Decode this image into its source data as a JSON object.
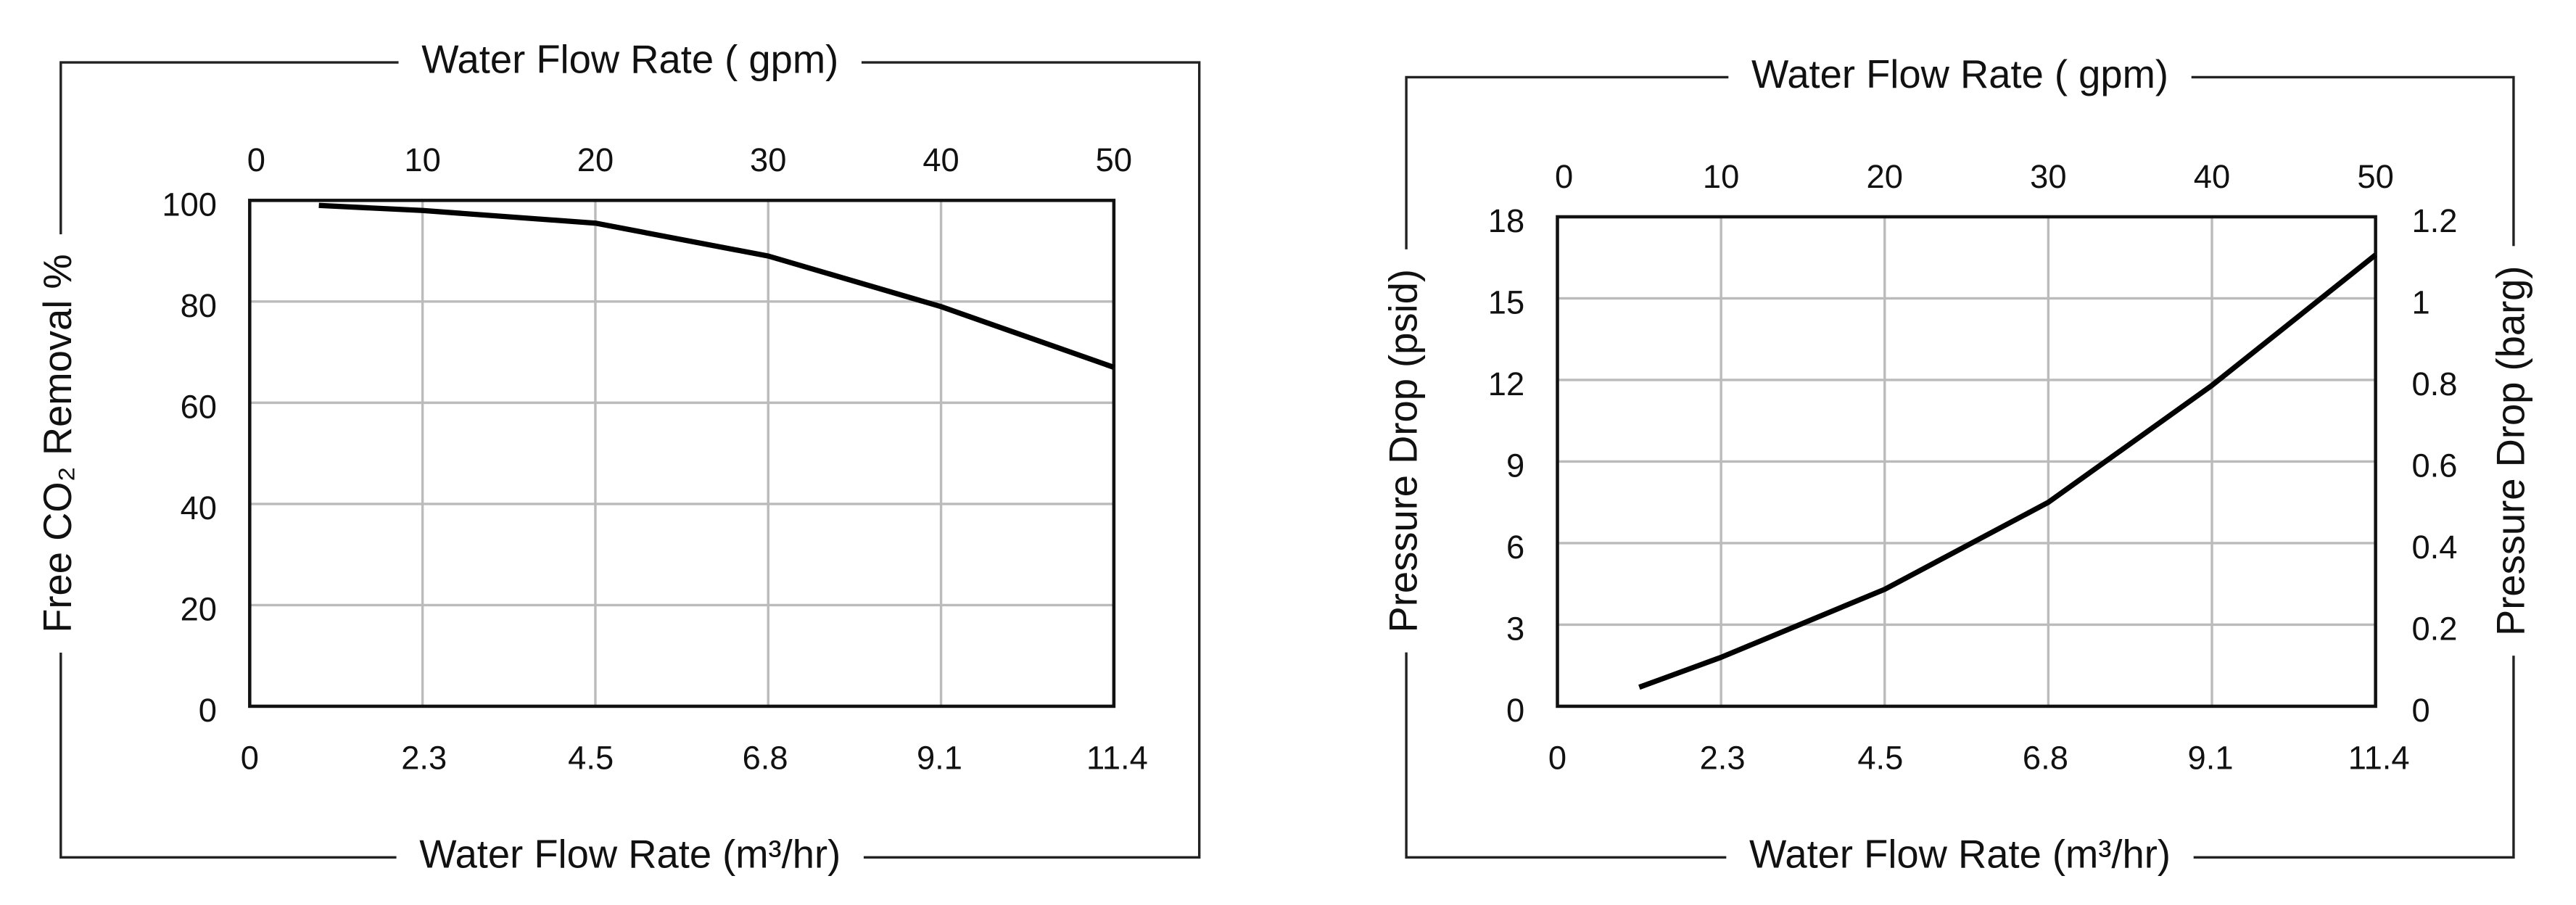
{
  "chart_data": [
    {
      "type": "line",
      "x_label_top": "Water Flow Rate ( gpm)",
      "x_label_bottom": "Water Flow Rate (m³/hr)",
      "y_label": "Free CO₂ Removal %",
      "x": [
        4,
        10,
        20,
        30,
        40,
        50
      ],
      "values": [
        99,
        98,
        95.5,
        89,
        79,
        67
      ],
      "color": "#000000",
      "xlim": [
        0,
        50
      ],
      "xticks": [
        0,
        10,
        20,
        30,
        40,
        50
      ],
      "x2lim": [
        0,
        11.4
      ],
      "x2ticks": [
        0,
        2.3,
        4.5,
        6.8,
        9.1,
        11.4
      ],
      "ylim": [
        0,
        100
      ],
      "yticks": [
        0,
        20,
        40,
        60,
        80,
        100
      ],
      "grid": true
    },
    {
      "type": "line",
      "x_label_top": "Water Flow Rate ( gpm)",
      "x_label_bottom": "Water Flow Rate (m³/hr)",
      "y_label": "Pressure Drop (psid)",
      "y2_label": "Pressure Drop (barg)",
      "x": [
        5,
        10,
        20,
        30,
        40,
        50
      ],
      "values": [
        0.7,
        1.8,
        4.3,
        7.5,
        11.8,
        16.6
      ],
      "color": "#000000",
      "xlim": [
        0,
        50
      ],
      "xticks": [
        0,
        10,
        20,
        30,
        40,
        50
      ],
      "x2lim": [
        0,
        11.4
      ],
      "x2ticks": [
        0,
        2.3,
        4.5,
        6.8,
        9.1,
        11.4
      ],
      "ylim": [
        0,
        18
      ],
      "yticks": [
        0,
        3,
        6,
        9,
        12,
        15,
        18
      ],
      "y2lim": [
        0,
        1.2
      ],
      "y2ticks": [
        0,
        0.2,
        0.4,
        0.6,
        0.8,
        1.0,
        1.2
      ],
      "grid": true
    }
  ]
}
